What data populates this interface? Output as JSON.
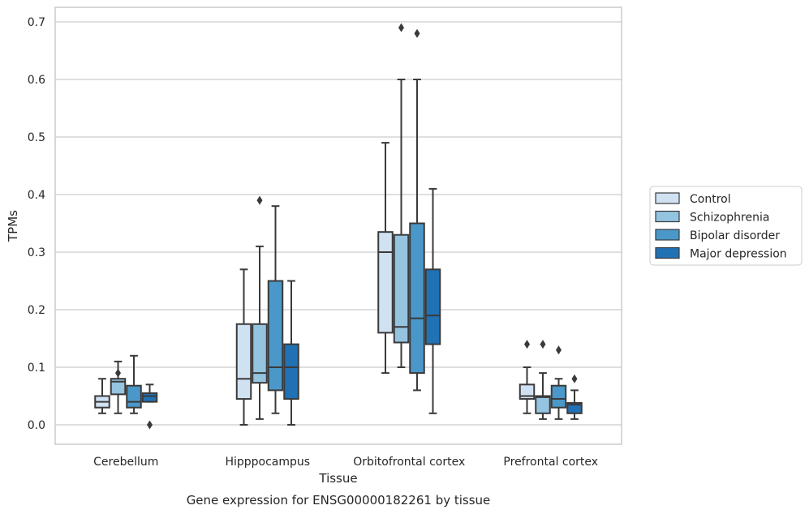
{
  "chart_data": {
    "type": "box",
    "title": "",
    "caption": "Gene expression for ENSG00000182261 by tissue",
    "xlabel": "Tissue",
    "ylabel": "TPMs",
    "ylim": [
      -0.033,
      0.727
    ],
    "yticks": [
      0.0,
      0.1,
      0.2,
      0.3,
      0.4,
      0.5,
      0.6,
      0.7
    ],
    "ytick_labels": [
      "0.0",
      "0.1",
      "0.2",
      "0.3",
      "0.4",
      "0.5",
      "0.6",
      "0.7"
    ],
    "grid": "horizontal",
    "legend_position": "right",
    "categories": [
      "Cerebellum",
      "Hipppocampus",
      "Orbitofrontal cortex",
      "Prefrontal cortex"
    ],
    "series": [
      {
        "name": "Control",
        "color": "#d0e1f2",
        "boxes": [
          {
            "whislo": 0.02,
            "q1": 0.03,
            "med": 0.04,
            "q3": 0.05,
            "whishi": 0.08,
            "fliers": []
          },
          {
            "whislo": 0.0,
            "q1": 0.045,
            "med": 0.08,
            "q3": 0.175,
            "whishi": 0.27,
            "fliers": []
          },
          {
            "whislo": 0.09,
            "q1": 0.16,
            "med": 0.3,
            "q3": 0.335,
            "whishi": 0.49,
            "fliers": []
          },
          {
            "whislo": 0.02,
            "q1": 0.045,
            "med": 0.05,
            "q3": 0.07,
            "whishi": 0.1,
            "fliers": [
              0.14
            ]
          }
        ]
      },
      {
        "name": "Schizophrenia",
        "color": "#94c4df",
        "boxes": [
          {
            "whislo": 0.02,
            "q1": 0.053,
            "med": 0.075,
            "q3": 0.08,
            "whishi": 0.11,
            "fliers": [
              0.09
            ]
          },
          {
            "whislo": 0.01,
            "q1": 0.073,
            "med": 0.09,
            "q3": 0.175,
            "whishi": 0.31,
            "fliers": [
              0.39
            ]
          },
          {
            "whislo": 0.1,
            "q1": 0.143,
            "med": 0.17,
            "q3": 0.33,
            "whishi": 0.6,
            "fliers": [
              0.69
            ]
          },
          {
            "whislo": 0.01,
            "q1": 0.02,
            "med": 0.048,
            "q3": 0.05,
            "whishi": 0.09,
            "fliers": [
              0.14
            ]
          }
        ]
      },
      {
        "name": "Bipolar disorder",
        "color": "#4a98c9",
        "boxes": [
          {
            "whislo": 0.02,
            "q1": 0.03,
            "med": 0.04,
            "q3": 0.068,
            "whishi": 0.12,
            "fliers": []
          },
          {
            "whislo": 0.02,
            "q1": 0.06,
            "med": 0.1,
            "q3": 0.25,
            "whishi": 0.38,
            "fliers": []
          },
          {
            "whislo": 0.06,
            "q1": 0.09,
            "med": 0.185,
            "q3": 0.35,
            "whishi": 0.6,
            "fliers": [
              0.68
            ]
          },
          {
            "whislo": 0.01,
            "q1": 0.03,
            "med": 0.045,
            "q3": 0.068,
            "whishi": 0.08,
            "fliers": [
              0.13
            ]
          }
        ]
      },
      {
        "name": "Major depression",
        "color": "#2171b5",
        "boxes": [
          {
            "whislo": 0.04,
            "q1": 0.04,
            "med": 0.05,
            "q3": 0.055,
            "whishi": 0.07,
            "fliers": [
              0.0
            ]
          },
          {
            "whislo": 0.0,
            "q1": 0.045,
            "med": 0.1,
            "q3": 0.14,
            "whishi": 0.25,
            "fliers": []
          },
          {
            "whislo": 0.02,
            "q1": 0.14,
            "med": 0.19,
            "q3": 0.27,
            "whishi": 0.41,
            "fliers": []
          },
          {
            "whislo": 0.01,
            "q1": 0.02,
            "med": 0.035,
            "q3": 0.038,
            "whishi": 0.06,
            "fliers": [
              0.08
            ]
          }
        ]
      }
    ]
  }
}
